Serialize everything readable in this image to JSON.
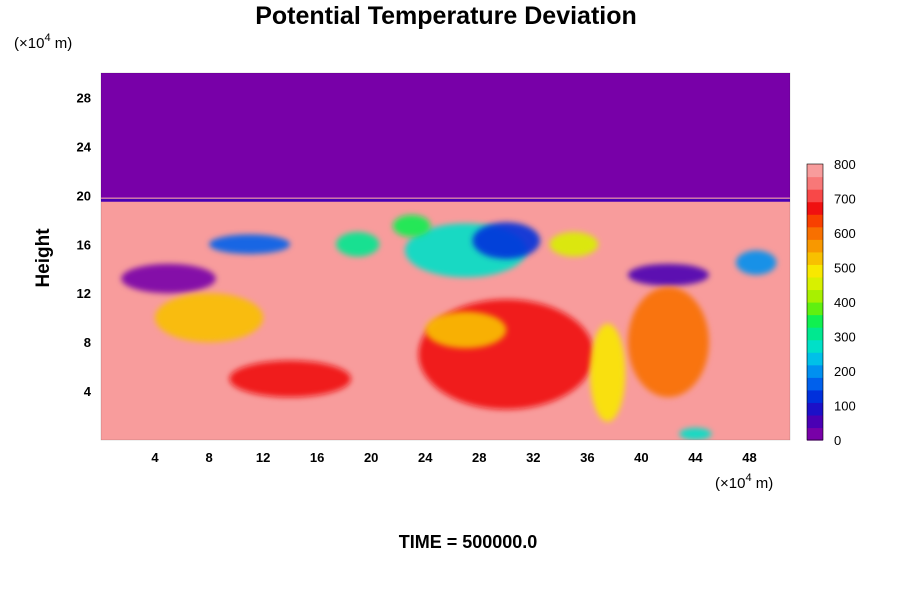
{
  "chart_data": {
    "type": "heatmap",
    "title": "Potential Temperature Deviation",
    "ylabel": "Height",
    "x_unit_prefix": "(×10",
    "x_unit_exp": "4",
    "x_unit_suffix": " m)",
    "y_unit_prefix": "(×10",
    "y_unit_exp": "4",
    "y_unit_suffix": " m)",
    "footer": "TIME = 500000.0",
    "xlim": [
      0,
      51
    ],
    "ylim": [
      0,
      30
    ],
    "x_ticks": [
      "4",
      "8",
      "12",
      "16",
      "20",
      "24",
      "28",
      "32",
      "36",
      "40",
      "44",
      "48"
    ],
    "x_tick_values": [
      4,
      8,
      12,
      16,
      20,
      24,
      28,
      32,
      36,
      40,
      44,
      48
    ],
    "y_ticks": [
      "4",
      "8",
      "12",
      "16",
      "20",
      "24",
      "28"
    ],
    "y_tick_values": [
      4,
      8,
      12,
      16,
      20,
      24,
      28
    ],
    "colorbar": {
      "min": 0,
      "max": 800,
      "tick_labels": [
        "0",
        "100",
        "200",
        "300",
        "400",
        "500",
        "600",
        "700",
        "800"
      ],
      "tick_values": [
        0,
        100,
        200,
        300,
        400,
        500,
        600,
        700,
        800
      ],
      "colors": [
        "#7800a8",
        "#4a00b4",
        "#1c10c8",
        "#0030dc",
        "#0060ec",
        "#0090f0",
        "#00c0e8",
        "#00e0c8",
        "#00e890",
        "#10f050",
        "#60f010",
        "#a8f000",
        "#d8f000",
        "#f8e800",
        "#f8c000",
        "#f89800",
        "#f87000",
        "#f84000",
        "#f01010",
        "#f84848",
        "#f87878",
        "#f89c9c"
      ]
    },
    "regions": [
      {
        "type": "rect",
        "x0": 0,
        "x1": 51,
        "y0": 19.8,
        "y1": 30,
        "value": 0
      },
      {
        "type": "rect",
        "x0": 0,
        "x1": 51,
        "y0": 0,
        "y1": 19.8,
        "value": 800
      },
      {
        "type": "band",
        "x": [
          0,
          51
        ],
        "y": [
          19.6,
          19.6
        ],
        "value": 50
      },
      {
        "type": "ellipse",
        "cx": 5,
        "cy": 13.2,
        "rx": 3.5,
        "ry": 1.2,
        "value": 0
      },
      {
        "type": "ellipse",
        "cx": 11,
        "cy": 16.0,
        "rx": 3.0,
        "ry": 0.8,
        "value": 150
      },
      {
        "type": "ellipse",
        "cx": 27,
        "cy": 15.5,
        "rx": 4.5,
        "ry": 2.2,
        "value": 250
      },
      {
        "type": "ellipse",
        "cx": 30,
        "cy": 16.3,
        "rx": 2.5,
        "ry": 1.5,
        "value": 100
      },
      {
        "type": "ellipse",
        "cx": 42,
        "cy": 13.5,
        "rx": 3.0,
        "ry": 0.9,
        "value": 50
      },
      {
        "type": "ellipse",
        "cx": 19,
        "cy": 16.0,
        "rx": 1.6,
        "ry": 1.0,
        "value": 300
      },
      {
        "type": "ellipse",
        "cx": 35,
        "cy": 16.0,
        "rx": 1.8,
        "ry": 1.0,
        "value": 450
      },
      {
        "type": "ellipse",
        "cx": 48.5,
        "cy": 14.5,
        "rx": 1.5,
        "ry": 1.0,
        "value": 200
      },
      {
        "type": "ellipse",
        "cx": 23,
        "cy": 17.5,
        "rx": 1.4,
        "ry": 0.9,
        "value": 350
      },
      {
        "type": "ellipse",
        "cx": 8,
        "cy": 10.0,
        "rx": 4.0,
        "ry": 2.0,
        "value": 550
      },
      {
        "type": "ellipse",
        "cx": 30,
        "cy": 7.0,
        "rx": 6.5,
        "ry": 4.5,
        "value": 680
      },
      {
        "type": "ellipse",
        "cx": 27,
        "cy": 9.0,
        "rx": 3.0,
        "ry": 1.5,
        "value": 520
      },
      {
        "type": "ellipse",
        "cx": 42,
        "cy": 8.0,
        "rx": 3.0,
        "ry": 4.5,
        "value": 620
      },
      {
        "type": "ellipse",
        "cx": 37.5,
        "cy": 5.5,
        "rx": 1.3,
        "ry": 4.0,
        "value": 480
      },
      {
        "type": "ellipse",
        "cx": 14,
        "cy": 5.0,
        "rx": 4.5,
        "ry": 1.5,
        "value": 700
      },
      {
        "type": "ellipse",
        "cx": 44,
        "cy": 0.5,
        "rx": 1.2,
        "ry": 0.5,
        "value": 250
      }
    ]
  }
}
